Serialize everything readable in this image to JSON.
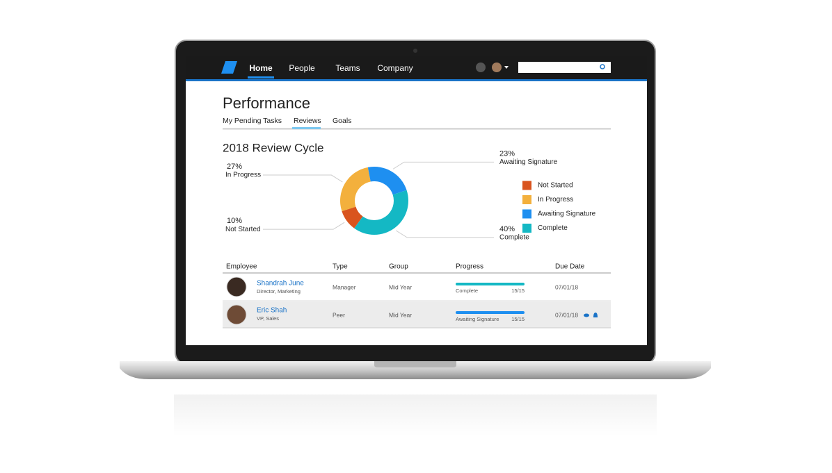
{
  "nav": {
    "items": [
      "Home",
      "People",
      "Teams",
      "Company"
    ]
  },
  "page": {
    "title": "Performance",
    "tabs": [
      "My Pending Tasks",
      "Reviews",
      "Goals"
    ]
  },
  "chart_data": {
    "type": "pie",
    "donut": true,
    "title": "2018 Review Cycle",
    "categories": [
      "Not Started",
      "In Progress",
      "Awaiting Signature",
      "Complete"
    ],
    "values": [
      10,
      27,
      23,
      40
    ],
    "value_labels": [
      "10%",
      "27%",
      "23%",
      "40%"
    ],
    "colors": [
      "#d9541e",
      "#f3b03d",
      "#1e8ff0",
      "#14b8c4"
    ],
    "legend": "right"
  },
  "table": {
    "columns": [
      "Employee",
      "Type",
      "Group",
      "Progress",
      "Due Date"
    ],
    "rows": [
      {
        "name": "Shandrah June",
        "title": "Director, Marketing",
        "type": "Manager",
        "group": "Mid Year",
        "status": "Complete",
        "progress": "15/15",
        "due": "07/01/18"
      },
      {
        "name": "Eric Shah",
        "title": "VP, Sales",
        "type": "Peer",
        "group": "Mid Year",
        "status": "Awaiting Signature",
        "progress": "15/15",
        "due": "07/01/18"
      }
    ]
  }
}
